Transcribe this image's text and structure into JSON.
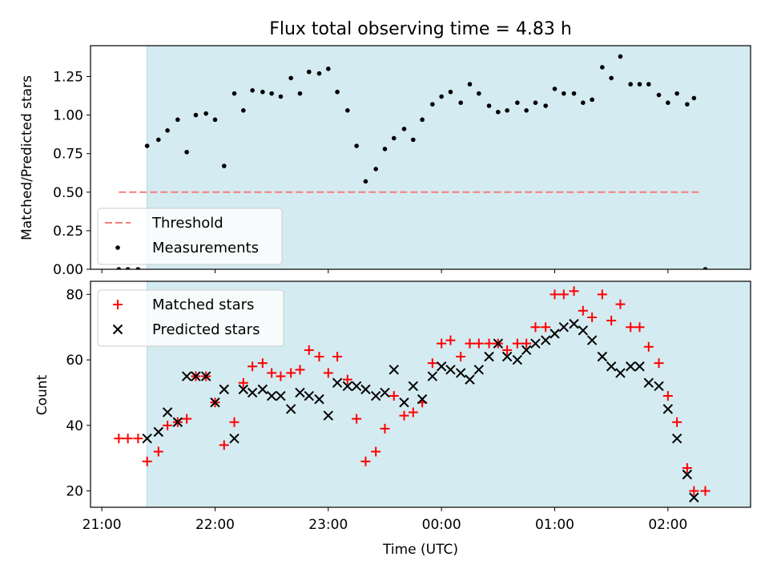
{
  "chart_data": [
    {
      "type": "scatter",
      "title": "Flux total observing time = 4.83 h",
      "xlabel": "",
      "ylabel": "Matched/Predicted stars",
      "x_unit": "hours after 21:00 UTC",
      "xlim": [
        -0.1,
        5.73
      ],
      "ylim": [
        0,
        1.45
      ],
      "yticks": [
        "0.00",
        "0.25",
        "0.50",
        "0.75",
        "1.00",
        "1.25"
      ],
      "shaded_span": [
        0.4,
        6.2
      ],
      "threshold": {
        "name": "Threshold",
        "value": 0.5,
        "color": "#f87c7c",
        "style": "dashed",
        "x_range": [
          0.15,
          5.3
        ]
      },
      "series": [
        {
          "name": "Measurements",
          "color": "#000000",
          "marker": "dot",
          "points": [
            [
              0.15,
              0.0
            ],
            [
              0.23,
              0.0
            ],
            [
              0.32,
              0.0
            ],
            [
              0.4,
              0.8
            ],
            [
              0.5,
              0.84
            ],
            [
              0.58,
              0.9
            ],
            [
              0.67,
              0.97
            ],
            [
              0.75,
              0.76
            ],
            [
              0.83,
              1.0
            ],
            [
              0.92,
              1.01
            ],
            [
              1.0,
              0.97
            ],
            [
              1.08,
              0.67
            ],
            [
              1.17,
              1.14
            ],
            [
              1.25,
              1.03
            ],
            [
              1.33,
              1.16
            ],
            [
              1.42,
              1.15
            ],
            [
              1.5,
              1.14
            ],
            [
              1.58,
              1.12
            ],
            [
              1.67,
              1.24
            ],
            [
              1.75,
              1.14
            ],
            [
              1.83,
              1.28
            ],
            [
              1.92,
              1.27
            ],
            [
              2.0,
              1.3
            ],
            [
              2.08,
              1.15
            ],
            [
              2.17,
              1.03
            ],
            [
              2.25,
              0.8
            ],
            [
              2.33,
              0.57
            ],
            [
              2.42,
              0.65
            ],
            [
              2.5,
              0.78
            ],
            [
              2.58,
              0.85
            ],
            [
              2.67,
              0.91
            ],
            [
              2.75,
              0.84
            ],
            [
              2.83,
              0.97
            ],
            [
              2.92,
              1.07
            ],
            [
              3.0,
              1.12
            ],
            [
              3.08,
              1.15
            ],
            [
              3.17,
              1.08
            ],
            [
              3.25,
              1.2
            ],
            [
              3.33,
              1.14
            ],
            [
              3.42,
              1.06
            ],
            [
              3.5,
              1.02
            ],
            [
              3.58,
              1.03
            ],
            [
              3.67,
              1.08
            ],
            [
              3.75,
              1.03
            ],
            [
              3.83,
              1.08
            ],
            [
              3.92,
              1.06
            ],
            [
              4.0,
              1.17
            ],
            [
              4.08,
              1.14
            ],
            [
              4.17,
              1.14
            ],
            [
              4.25,
              1.08
            ],
            [
              4.33,
              1.1
            ],
            [
              4.42,
              1.31
            ],
            [
              4.5,
              1.24
            ],
            [
              4.58,
              1.38
            ],
            [
              4.67,
              1.2
            ],
            [
              4.75,
              1.2
            ],
            [
              4.83,
              1.2
            ],
            [
              4.92,
              1.13
            ],
            [
              5.0,
              1.08
            ],
            [
              5.08,
              1.14
            ],
            [
              5.17,
              1.07
            ],
            [
              5.23,
              1.11
            ],
            [
              5.33,
              0.0
            ]
          ]
        }
      ],
      "legend": {
        "position": "lower-left",
        "entries": [
          "Threshold",
          "Measurements"
        ]
      }
    },
    {
      "type": "scatter",
      "title": "",
      "xlabel": "Time (UTC)",
      "ylabel": "Count",
      "x_unit": "hours after 21:00 UTC",
      "xlim": [
        -0.1,
        5.73
      ],
      "ylim": [
        15,
        84
      ],
      "xticks": [
        "21:00",
        "22:00",
        "23:00",
        "00:00",
        "01:00",
        "02:00"
      ],
      "yticks": [
        "20",
        "40",
        "60",
        "80"
      ],
      "shaded_span": [
        0.4,
        6.2
      ],
      "series": [
        {
          "name": "Matched stars",
          "color": "#ff0000",
          "marker": "plus",
          "points": [
            [
              0.15,
              36
            ],
            [
              0.23,
              36
            ],
            [
              0.32,
              36
            ],
            [
              0.4,
              29
            ],
            [
              0.5,
              32
            ],
            [
              0.58,
              40
            ],
            [
              0.67,
              41
            ],
            [
              0.75,
              42
            ],
            [
              0.83,
              55
            ],
            [
              0.92,
              55
            ],
            [
              1.0,
              47
            ],
            [
              1.08,
              34
            ],
            [
              1.17,
              41
            ],
            [
              1.25,
              53
            ],
            [
              1.33,
              58
            ],
            [
              1.42,
              59
            ],
            [
              1.5,
              56
            ],
            [
              1.58,
              55
            ],
            [
              1.67,
              56
            ],
            [
              1.75,
              57
            ],
            [
              1.83,
              63
            ],
            [
              1.92,
              61
            ],
            [
              2.0,
              56
            ],
            [
              2.08,
              61
            ],
            [
              2.17,
              54
            ],
            [
              2.25,
              42
            ],
            [
              2.33,
              29
            ],
            [
              2.42,
              32
            ],
            [
              2.5,
              39
            ],
            [
              2.58,
              49
            ],
            [
              2.67,
              43
            ],
            [
              2.75,
              44
            ],
            [
              2.83,
              47
            ],
            [
              2.92,
              59
            ],
            [
              3.0,
              65
            ],
            [
              3.08,
              66
            ],
            [
              3.17,
              61
            ],
            [
              3.25,
              65
            ],
            [
              3.33,
              65
            ],
            [
              3.42,
              65
            ],
            [
              3.5,
              65
            ],
            [
              3.58,
              63
            ],
            [
              3.67,
              65
            ],
            [
              3.75,
              65
            ],
            [
              3.83,
              70
            ],
            [
              3.92,
              70
            ],
            [
              4.0,
              80
            ],
            [
              4.08,
              80
            ],
            [
              4.17,
              81
            ],
            [
              4.25,
              75
            ],
            [
              4.33,
              73
            ],
            [
              4.42,
              80
            ],
            [
              4.5,
              72
            ],
            [
              4.58,
              77
            ],
            [
              4.67,
              70
            ],
            [
              4.75,
              70
            ],
            [
              4.83,
              64
            ],
            [
              4.92,
              59
            ],
            [
              5.0,
              49
            ],
            [
              5.08,
              41
            ],
            [
              5.17,
              27
            ],
            [
              5.23,
              20
            ],
            [
              5.33,
              20
            ]
          ]
        },
        {
          "name": "Predicted stars",
          "color": "#000000",
          "marker": "x",
          "points": [
            [
              0.4,
              36
            ],
            [
              0.5,
              38
            ],
            [
              0.58,
              44
            ],
            [
              0.67,
              41
            ],
            [
              0.75,
              55
            ],
            [
              0.83,
              55
            ],
            [
              0.92,
              55
            ],
            [
              1.0,
              47
            ],
            [
              1.08,
              51
            ],
            [
              1.17,
              36
            ],
            [
              1.25,
              51
            ],
            [
              1.33,
              50
            ],
            [
              1.42,
              51
            ],
            [
              1.5,
              49
            ],
            [
              1.58,
              49
            ],
            [
              1.67,
              45
            ],
            [
              1.75,
              50
            ],
            [
              1.83,
              49
            ],
            [
              1.92,
              48
            ],
            [
              2.0,
              43
            ],
            [
              2.08,
              53
            ],
            [
              2.17,
              52
            ],
            [
              2.25,
              52
            ],
            [
              2.33,
              51
            ],
            [
              2.42,
              49
            ],
            [
              2.5,
              50
            ],
            [
              2.58,
              57
            ],
            [
              2.67,
              47
            ],
            [
              2.75,
              52
            ],
            [
              2.83,
              48
            ],
            [
              2.92,
              55
            ],
            [
              3.0,
              58
            ],
            [
              3.08,
              57
            ],
            [
              3.17,
              56
            ],
            [
              3.25,
              54
            ],
            [
              3.33,
              57
            ],
            [
              3.42,
              61
            ],
            [
              3.5,
              65
            ],
            [
              3.58,
              61
            ],
            [
              3.67,
              60
            ],
            [
              3.75,
              63
            ],
            [
              3.83,
              65
            ],
            [
              3.92,
              66
            ],
            [
              4.0,
              68
            ],
            [
              4.08,
              70
            ],
            [
              4.17,
              71
            ],
            [
              4.25,
              69
            ],
            [
              4.33,
              66
            ],
            [
              4.42,
              61
            ],
            [
              4.5,
              58
            ],
            [
              4.58,
              56
            ],
            [
              4.67,
              58
            ],
            [
              4.75,
              58
            ],
            [
              4.83,
              53
            ],
            [
              4.92,
              52
            ],
            [
              5.0,
              45
            ],
            [
              5.08,
              36
            ],
            [
              5.17,
              25
            ],
            [
              5.23,
              18
            ]
          ]
        }
      ],
      "legend": {
        "position": "top-left",
        "entries": [
          "Matched stars",
          "Predicted stars"
        ]
      }
    }
  ],
  "colors": {
    "shade": "#d4ebf1",
    "threshold": "#f87c7c",
    "matched": "#ff0000",
    "predicted": "#000000"
  }
}
